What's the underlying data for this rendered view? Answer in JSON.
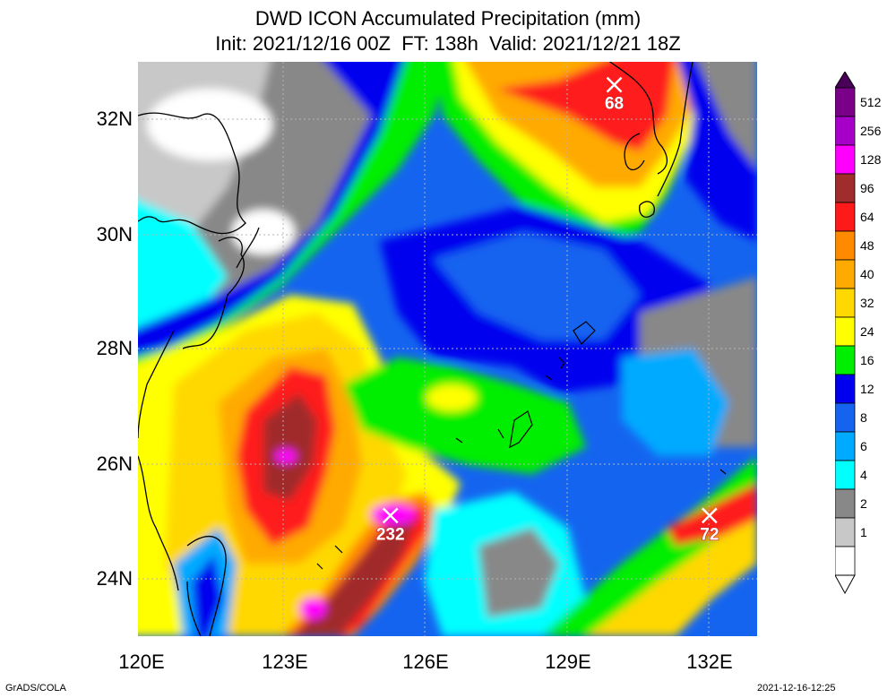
{
  "title": {
    "line1": "DWD ICON Accumulated Precipitation (mm)",
    "line2": "Init: 2021/12/16 00Z  FT: 138h  Valid: 2021/12/21 18Z"
  },
  "axes": {
    "lat_labels": [
      "32N",
      "30N",
      "28N",
      "26N",
      "24N"
    ],
    "lon_labels": [
      "120E",
      "123E",
      "126E",
      "129E",
      "132E"
    ]
  },
  "legend": {
    "levels": [
      "512",
      "256",
      "128",
      "96",
      "64",
      "48",
      "40",
      "32",
      "24",
      "16",
      "12",
      "8",
      "6",
      "4",
      "2",
      "1"
    ],
    "colors": {
      "512": "#7a008a",
      "256": "#a600c8",
      "128": "#ff00ff",
      "96": "#a02c2c",
      "64": "#ff1a1a",
      "48": "#ff8a00",
      "40": "#ffaa00",
      "32": "#ffd800",
      "24": "#ffff00",
      "16": "#00ee00",
      "12": "#0000ee",
      "8": "#1464f0",
      "6": "#00aaff",
      "4": "#00ffff",
      "2": "#888888",
      "1": "#c8c8c8",
      "0": "#ffffff"
    }
  },
  "markers": [
    {
      "label": "68",
      "lon": 130.0,
      "lat": 32.6
    },
    {
      "label": "232",
      "lon": 125.3,
      "lat": 25.1
    },
    {
      "label": "72",
      "lon": 132.0,
      "lat": 25.1
    }
  ],
  "footer": {
    "left": "GrADS/COLA",
    "right": "2021-12-16-12:25"
  }
}
